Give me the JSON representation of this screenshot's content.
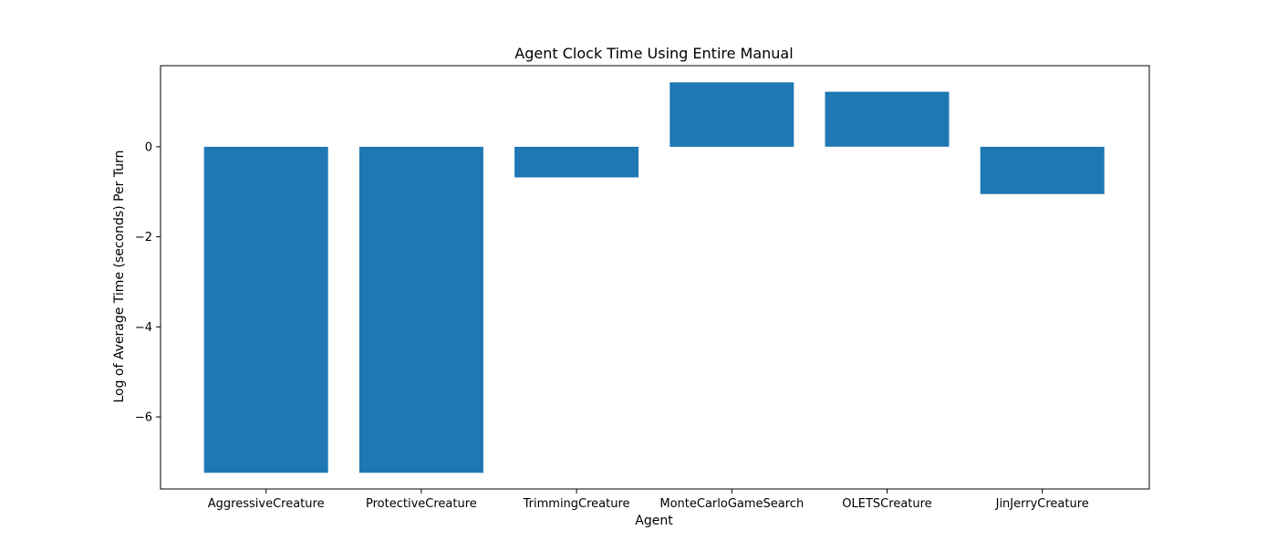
{
  "chart_data": {
    "type": "bar",
    "title": "Agent Clock Time Using Entire Manual",
    "xlabel": "Agent",
    "ylabel": "Log of Average Time (seconds) Per Turn",
    "categories": [
      "AggressiveCreature",
      "ProtectiveCreature",
      "TrimmingCreature",
      "MonteCarloGameSearch",
      "OLETSCreature",
      "JinJerryCreature"
    ],
    "values": [
      -7.24,
      -7.24,
      -0.68,
      1.43,
      1.22,
      -1.05
    ],
    "ylim": [
      -7.6,
      1.8
    ],
    "yticks": [
      0,
      -2,
      -4,
      -6
    ],
    "ytick_labels": [
      "0",
      "−2",
      "−4",
      "−6"
    ],
    "bar_color": "#1f77b4",
    "grid": false,
    "legend": "none"
  }
}
